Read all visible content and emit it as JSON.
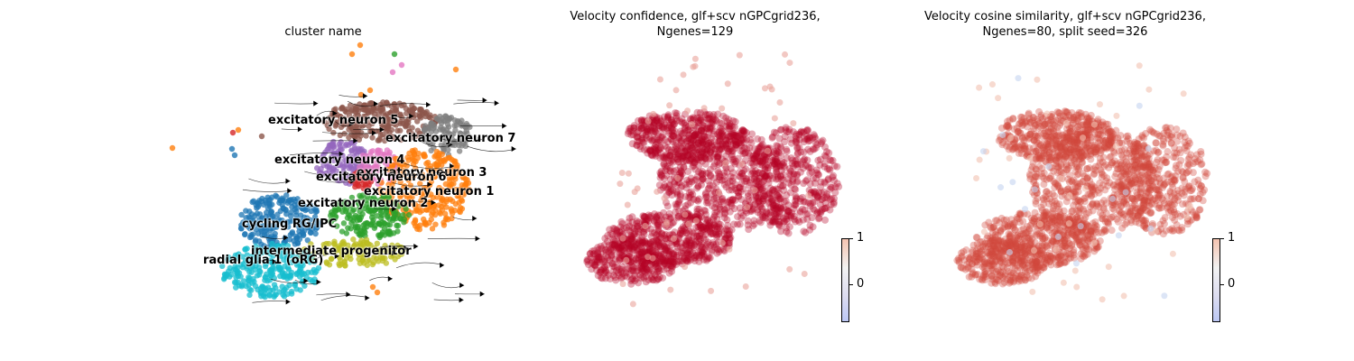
{
  "chart_data": [
    {
      "type": "scatter",
      "title": "cluster name",
      "clusters": [
        {
          "name": "excitatory neuron 5",
          "color": "#8c564b"
        },
        {
          "name": "excitatory neuron 7",
          "color": "#7f7f7f"
        },
        {
          "name": "excitatory neuron 4",
          "color": "#9467bd"
        },
        {
          "name": "excitatory neuron 3",
          "color": "#e377c2"
        },
        {
          "name": "excitatory neuron 6",
          "color": "#d62728"
        },
        {
          "name": "excitatory neuron 1",
          "color": "#ff7f0e"
        },
        {
          "name": "excitatory neuron 2",
          "color": "#2ca02c"
        },
        {
          "name": "cycling RG/IPC",
          "color": "#1f77b4"
        },
        {
          "name": "intermediate progenitor",
          "color": "#bcbd22"
        },
        {
          "name": "radial glia 1 (oRG)",
          "color": "#17becf"
        }
      ],
      "streamlines": true
    },
    {
      "type": "scatter",
      "title_line1": "Velocity confidence, glf+scv nGPCgrid236,",
      "title_line2": "Ngenes=129",
      "colormap": "coolwarm",
      "dominant_color": "#b40426",
      "colorbar_ticks": [
        "1",
        "0"
      ]
    },
    {
      "type": "scatter",
      "title_line1": "Velocity cosine similarity, glf+scv nGPCgrid236,",
      "title_line2": "Ngenes=80, split seed=326",
      "colormap": "coolwarm",
      "dominant_color": "#d0473d",
      "colorbar_ticks": [
        "1",
        "0"
      ]
    }
  ]
}
